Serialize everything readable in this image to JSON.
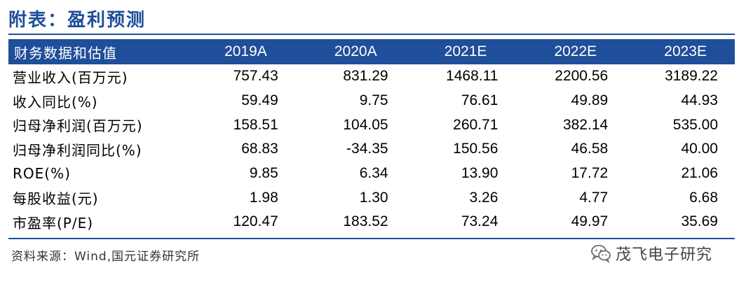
{
  "title": "附表：盈利预测",
  "table": {
    "header": {
      "label": "财务数据和估值",
      "years": [
        "2019A",
        "2020A",
        "2021E",
        "2022E",
        "2023E"
      ]
    },
    "rows": [
      {
        "label": "营业收入(百万元)",
        "values": [
          "757.43",
          "831.29",
          "1468.11",
          "2200.56",
          "3189.22"
        ]
      },
      {
        "label": "收入同比(%)",
        "values": [
          "59.49",
          "9.75",
          "76.61",
          "49.89",
          "44.93"
        ]
      },
      {
        "label": "归母净利润(百万元)",
        "values": [
          "158.51",
          "104.05",
          "260.71",
          "382.14",
          "535.00"
        ]
      },
      {
        "label": "归母净利润同比(%)",
        "values": [
          "68.83",
          "-34.35",
          "150.56",
          "46.58",
          "40.00"
        ]
      },
      {
        "label": "ROE(%)",
        "values": [
          "9.85",
          "6.34",
          "13.90",
          "17.72",
          "21.06"
        ]
      },
      {
        "label": "每股收益(元)",
        "values": [
          "1.98",
          "1.30",
          "3.26",
          "4.77",
          "6.68"
        ]
      },
      {
        "label": "市盈率(P/E)",
        "values": [
          "120.47",
          "183.52",
          "73.24",
          "49.97",
          "35.69"
        ]
      }
    ]
  },
  "source": "资料来源：Wind,国元证券研究所",
  "watermark": {
    "text": "茂飞电子研究",
    "icon": "wechat-icon"
  },
  "colors": {
    "header_bg": "#1f4e9a",
    "title": "#1f4e9a"
  }
}
